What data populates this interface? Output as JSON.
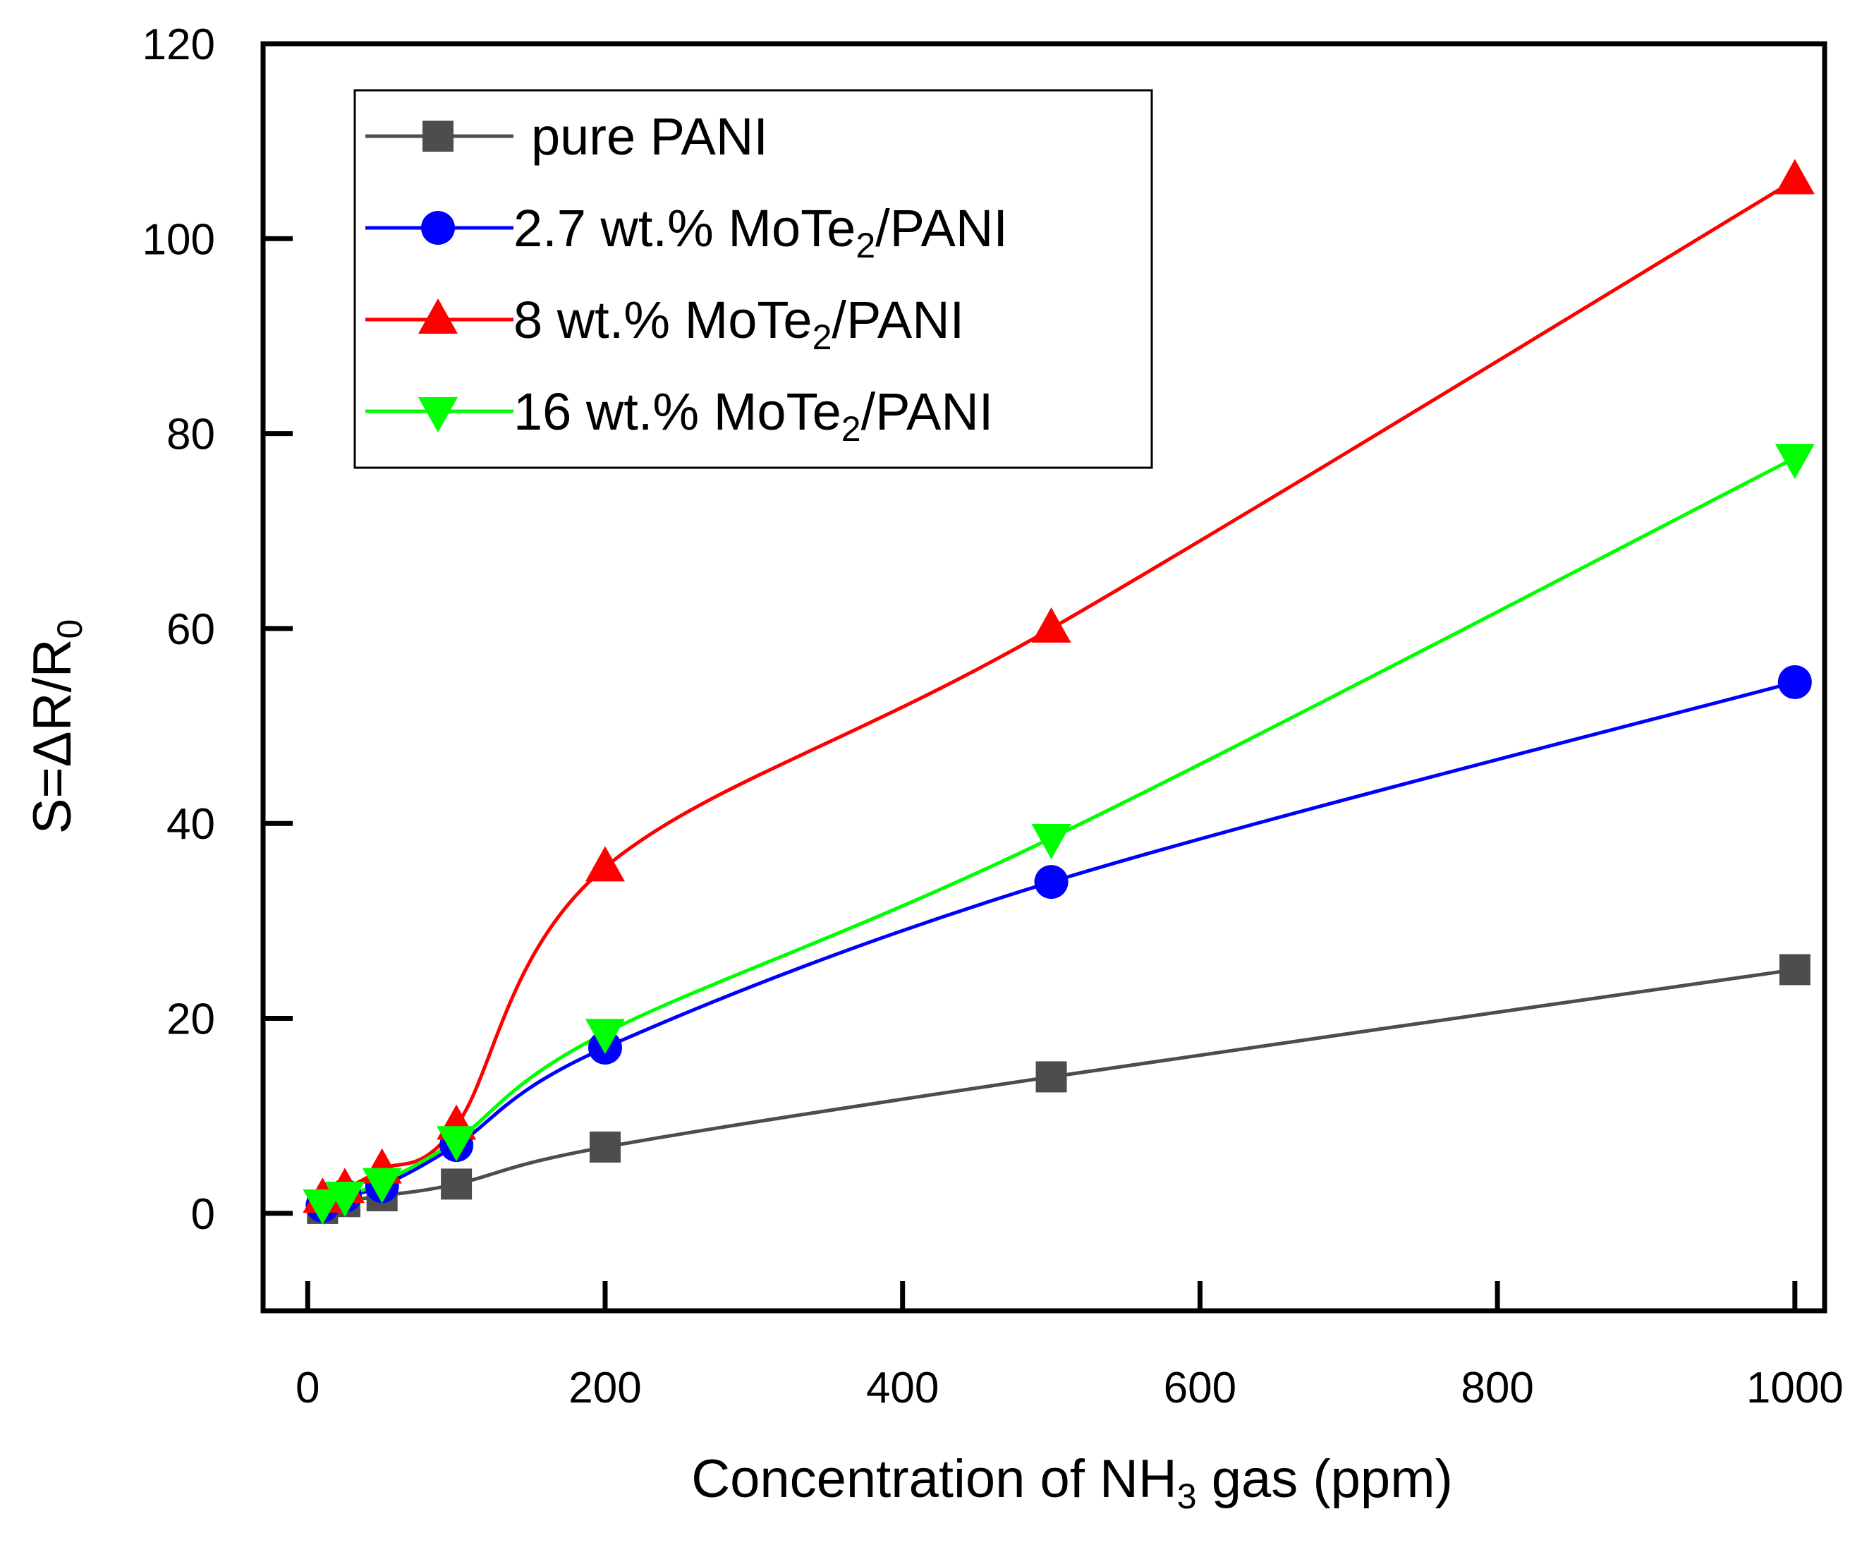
{
  "chart_data": {
    "type": "line",
    "xlabel": {
      "pre": "Concentration of NH",
      "sub": "3",
      "post": " gas (ppm)"
    },
    "ylabel": {
      "pre": "S=ΔR/R",
      "sub": "0"
    },
    "xlim": [
      -30,
      1020
    ],
    "ylim": [
      -10,
      120
    ],
    "xticks": [
      0,
      200,
      400,
      600,
      800,
      1000
    ],
    "yticks": [
      0,
      20,
      40,
      60,
      80,
      100,
      120
    ],
    "legend_position": "top-left",
    "series": [
      {
        "name": "pure PANI",
        "label": {
          "pre": "pure PANI",
          "sub": "",
          "post": ""
        },
        "color": "#4d4d4d",
        "marker": "square",
        "x": [
          10,
          25,
          50,
          100,
          200,
          500,
          1000
        ],
        "y": [
          0.5,
          1.2,
          1.8,
          3.0,
          6.8,
          14.0,
          25.0
        ]
      },
      {
        "name": "2.7 wt.% MoTe2/PANI",
        "label": {
          "pre": "2.7 wt.% MoTe",
          "sub": "2",
          "post": "/PANI"
        },
        "color": "#0000ff",
        "marker": "circle",
        "x": [
          10,
          25,
          50,
          100,
          200,
          500,
          1000
        ],
        "y": [
          0.8,
          1.8,
          2.8,
          7.0,
          17.0,
          34.0,
          54.5
        ]
      },
      {
        "name": "8 wt.% MoTe2/PANI",
        "label": {
          "pre": "8 wt.% MoTe",
          "sub": "2",
          "post": "/PANI"
        },
        "color": "#ff0000",
        "marker": "triangle-up",
        "x": [
          10,
          25,
          50,
          100,
          200,
          500,
          1000
        ],
        "y": [
          1.5,
          2.5,
          4.5,
          9.0,
          35.5,
          60.0,
          106.0
        ]
      },
      {
        "name": "16 wt.% MoTe2/PANI",
        "label": {
          "pre": "16 wt.% MoTe",
          "sub": "2",
          "post": "/PANI"
        },
        "color": "#00ff00",
        "marker": "triangle-down",
        "x": [
          10,
          25,
          50,
          100,
          200,
          500,
          1000
        ],
        "y": [
          1.0,
          1.8,
          3.2,
          7.5,
          18.5,
          38.5,
          77.5
        ]
      }
    ]
  }
}
